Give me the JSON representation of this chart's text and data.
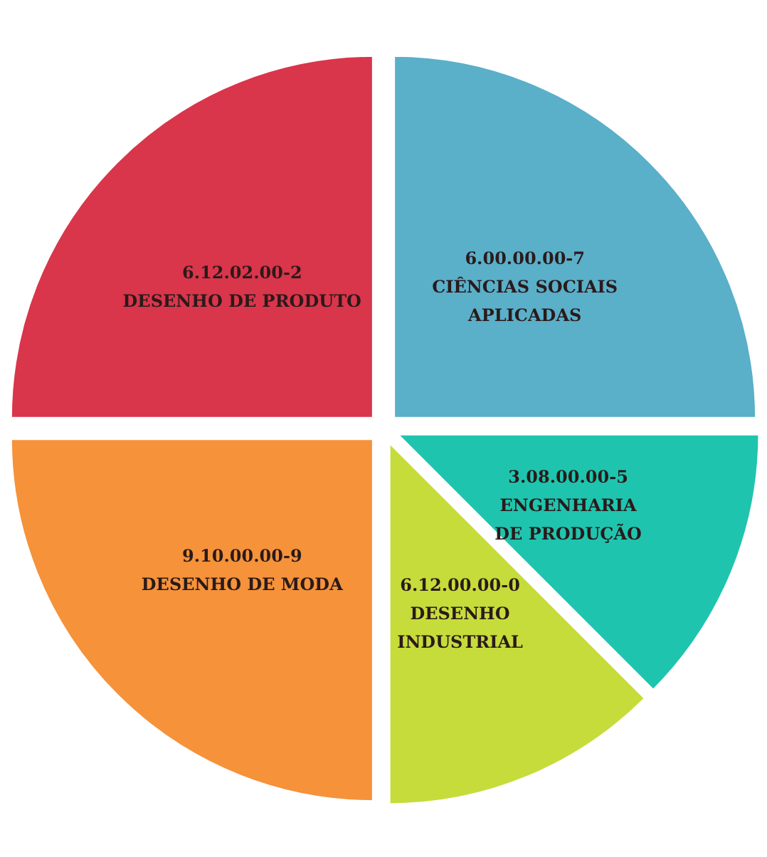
{
  "chart_data": {
    "type": "pie",
    "categories": [
      "6.00.00.00-7\nCIÊNCIAS SOCIAIS\nAPLICADAS",
      "3.08.00.00-5\nENGENHARIA\nDE PRODUÇÃO",
      "6.12.00.00-0\nDESENHO\nINDUSTRIAL",
      "9.10.00.00-9\nDESENHO DE MODA",
      "6.12.02.00-2\nDESENHO DE PRODUTO"
    ],
    "values": [
      25,
      12.5,
      12.5,
      25,
      25
    ],
    "colors": [
      "#5aafc9",
      "#1fc4ae",
      "#c6dc3a",
      "#f5923a",
      "#d9354b"
    ]
  }
}
